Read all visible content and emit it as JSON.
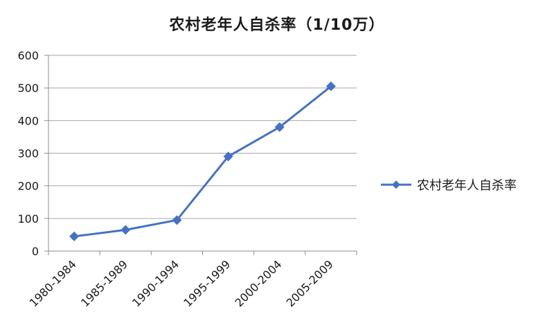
{
  "chart_data": {
    "type": "line",
    "title": "农村老年人自杀率（1/10万）",
    "categories": [
      "1980-1984",
      "1985-1989",
      "1990-1994",
      "1995-1999",
      "2000-2004",
      "2005-2009"
    ],
    "series": [
      {
        "name": "农村老年人自杀率",
        "values": [
          45,
          65,
          95,
          290,
          380,
          505
        ],
        "color": "#4472c4"
      }
    ],
    "yticks": [
      0,
      100,
      200,
      300,
      400,
      500,
      600
    ],
    "ylim": [
      0,
      600
    ],
    "grid": true,
    "legend_position": "right",
    "marker": "diamond"
  }
}
